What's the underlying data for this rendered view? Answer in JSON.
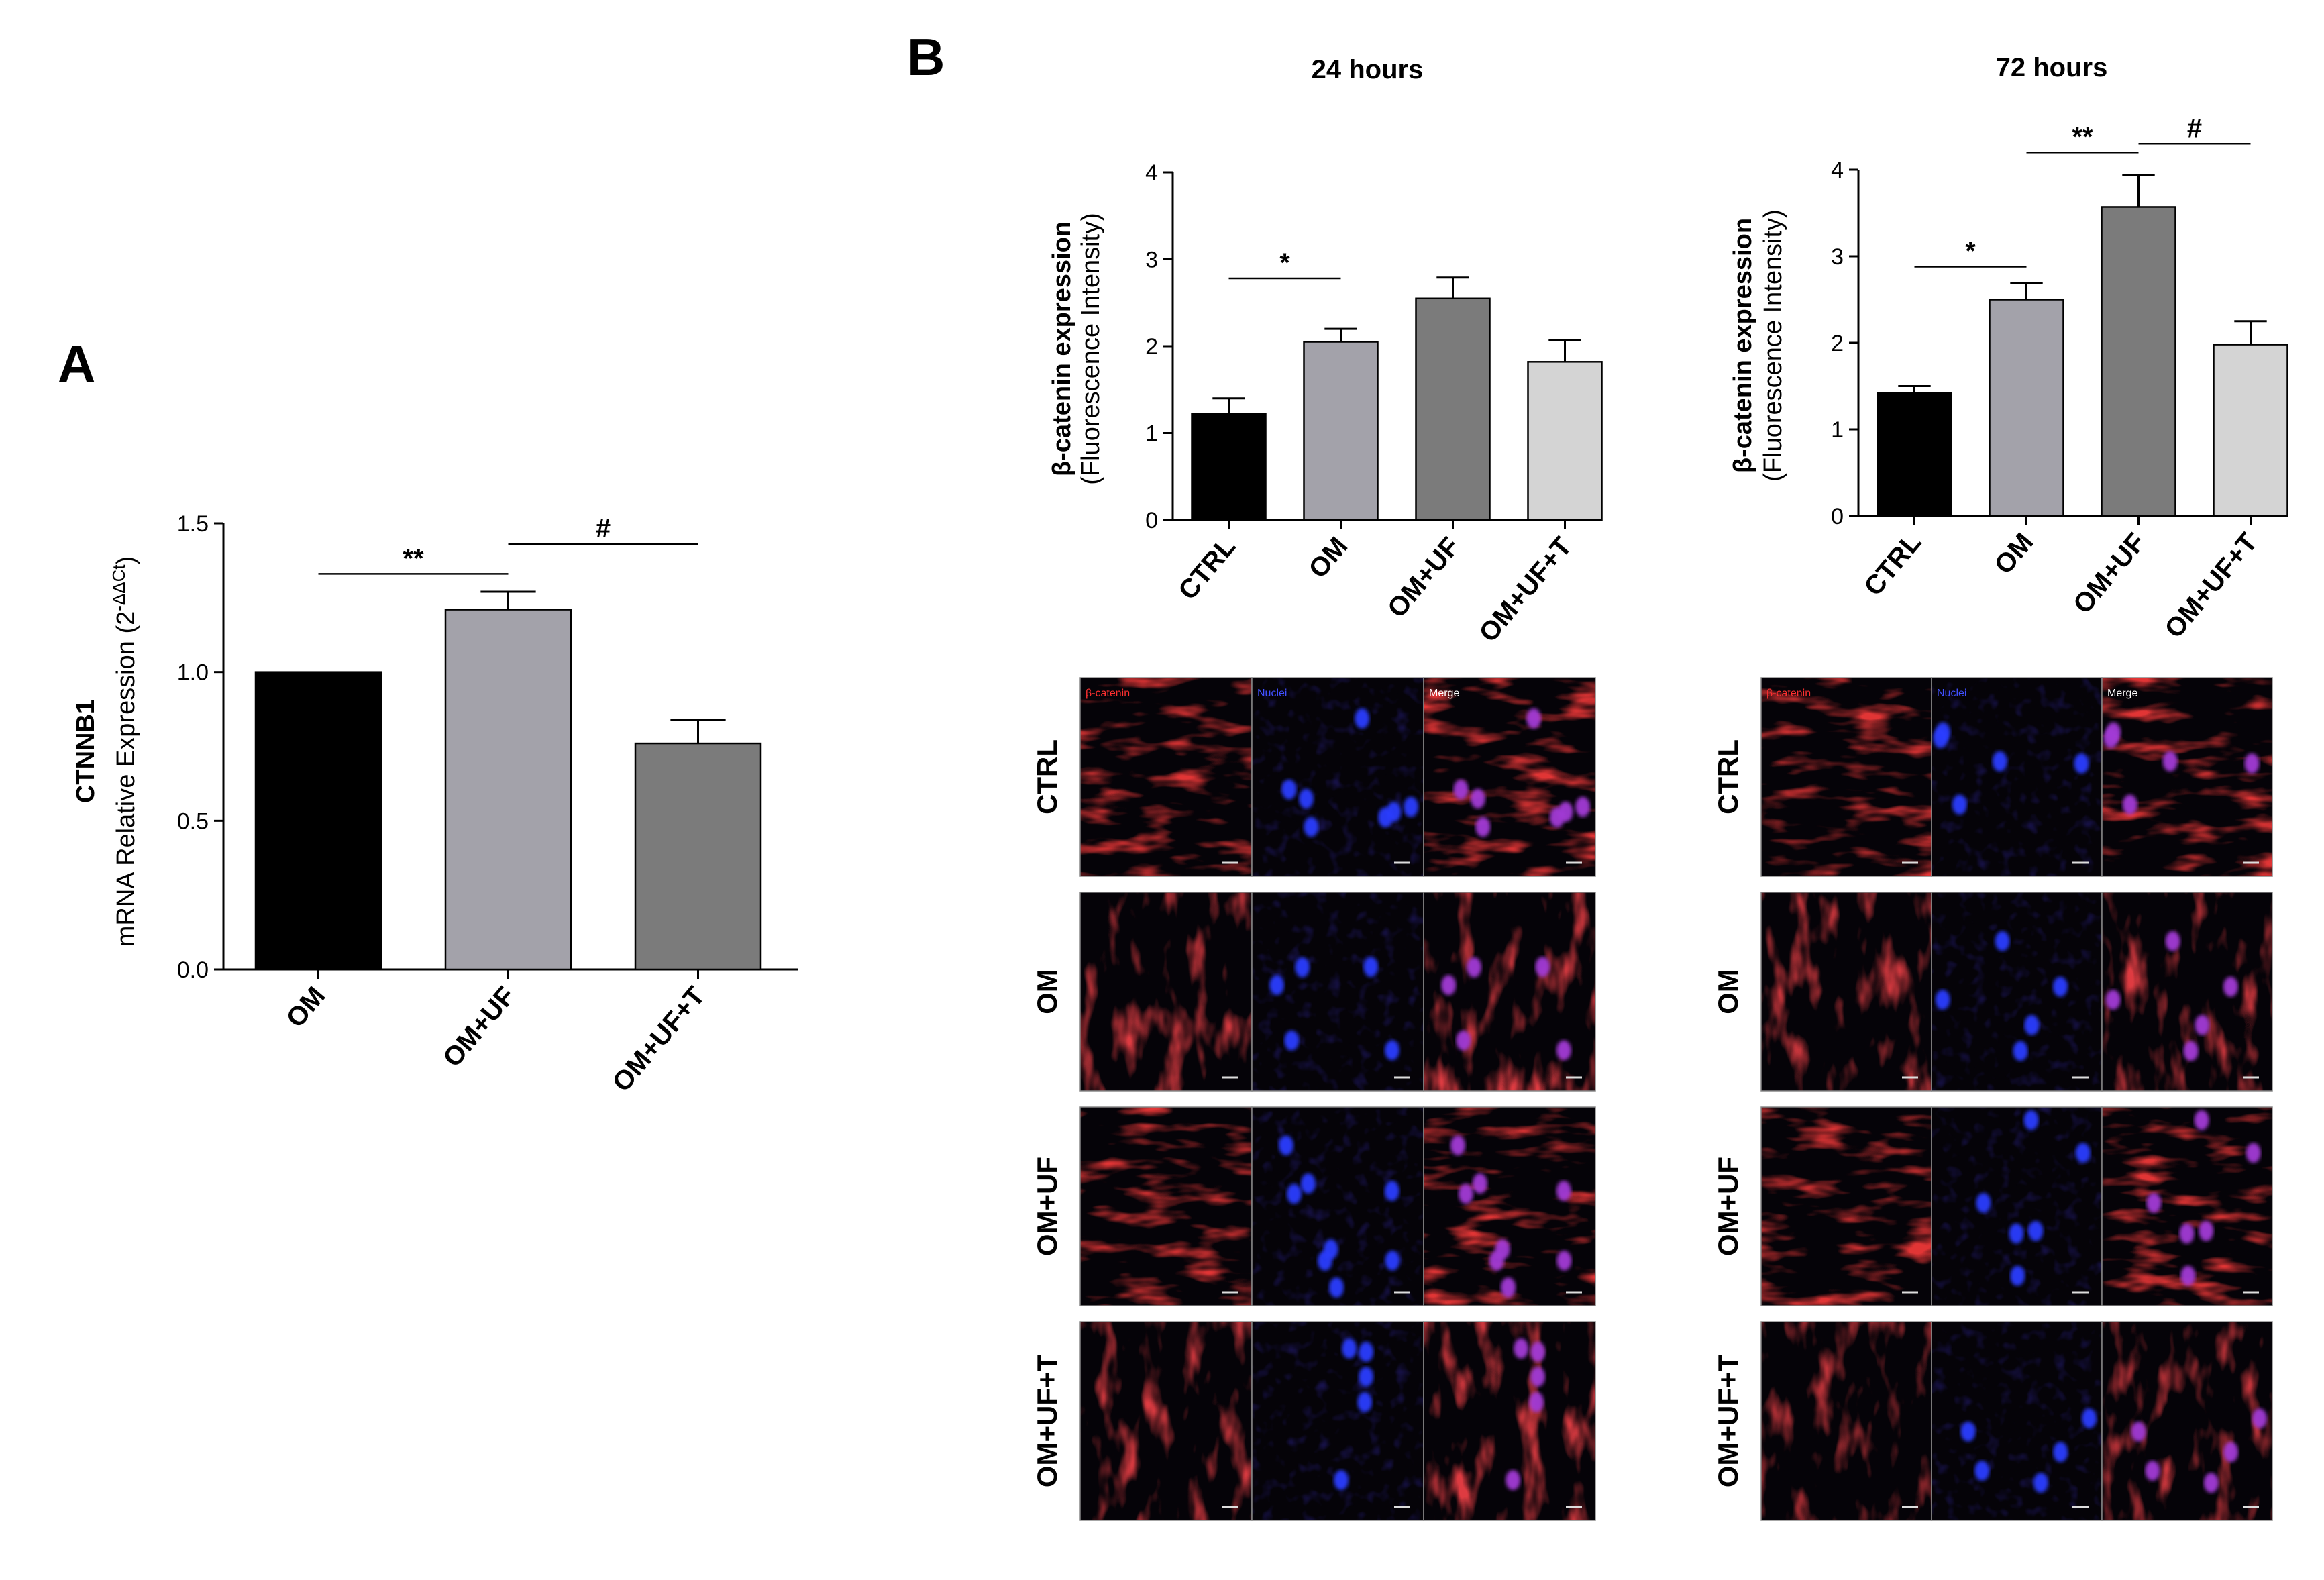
{
  "panel_labels": {
    "a": "A",
    "b": "B"
  },
  "time_titles": [
    "24 hours",
    "72 hours"
  ],
  "colors": {
    "black": "#000000",
    "mid_gray": "#9e9ea6",
    "dark_gray": "#7a7a7a",
    "light_gray": "#d4d4d4"
  },
  "channel_labels": [
    "β-catenin",
    "Nuclei",
    "Merge"
  ],
  "row_labels": [
    "CTRL",
    "OM",
    "OM+UF",
    "OM+UF+T"
  ],
  "chart_data": [
    {
      "id": "A",
      "type": "bar",
      "title": "",
      "ylabel_bold": "CTNNB1",
      "ylabel": "mRNA Relative Expression (2",
      "ylabel_sup": "-ΔΔCt",
      "ylabel_end": ")",
      "categories": [
        "OM",
        "OM+UF",
        "OM+UF+T"
      ],
      "values": [
        1.0,
        1.21,
        0.76
      ],
      "errors": [
        0,
        0.06,
        0.08
      ],
      "bar_colors": [
        "#000000",
        "#a3a2aa",
        "#7b7b7b"
      ],
      "ylim": [
        0,
        1.5
      ],
      "yticks": [
        "0.0",
        "0.5",
        "1.0",
        "1.5"
      ],
      "ytick_values": [
        0,
        0.5,
        1.0,
        1.5
      ],
      "significance": [
        {
          "from": 0,
          "to": 1,
          "label": "**",
          "y": 1.33
        },
        {
          "from": 1,
          "to": 2,
          "label": "#",
          "y": 1.43
        }
      ]
    },
    {
      "id": "B24",
      "type": "bar",
      "title": "24 hours",
      "ylabel_bold": "β-catenin expression",
      "ylabel": "(Fluorescence Intensity)",
      "categories": [
        "CTRL",
        "OM",
        "OM+UF",
        "OM+UF+T"
      ],
      "values": [
        1.22,
        2.05,
        2.55,
        1.82
      ],
      "errors": [
        0.18,
        0.15,
        0.24,
        0.25
      ],
      "bar_colors": [
        "#000000",
        "#a3a2aa",
        "#7b7b7b",
        "#d4d4d4"
      ],
      "ylim": [
        0,
        4
      ],
      "yticks": [
        "0",
        "1",
        "2",
        "3",
        "4"
      ],
      "ytick_values": [
        0,
        1,
        2,
        3,
        4
      ],
      "significance": [
        {
          "from": 0,
          "to": 1,
          "label": "*",
          "y": 2.78
        }
      ]
    },
    {
      "id": "B72",
      "type": "bar",
      "title": "72 hours",
      "ylabel_bold": "β-catenin expression",
      "ylabel": "(Fluorescence Intensity)",
      "categories": [
        "CTRL",
        "OM",
        "OM+UF",
        "OM+UF+T"
      ],
      "values": [
        1.42,
        2.5,
        3.57,
        1.98
      ],
      "errors": [
        0.08,
        0.19,
        0.37,
        0.27
      ],
      "bar_colors": [
        "#000000",
        "#a3a2aa",
        "#7b7b7b",
        "#d4d4d4"
      ],
      "ylim": [
        0,
        4
      ],
      "yticks": [
        "0",
        "1",
        "2",
        "3",
        "4"
      ],
      "ytick_values": [
        0,
        1,
        2,
        3,
        4
      ],
      "significance": [
        {
          "from": 0,
          "to": 1,
          "label": "*",
          "y": 2.88
        },
        {
          "from": 1,
          "to": 2,
          "label": "**",
          "y": 4.2
        },
        {
          "from": 2,
          "to": 3,
          "label": "#",
          "y": 4.3
        }
      ]
    }
  ]
}
